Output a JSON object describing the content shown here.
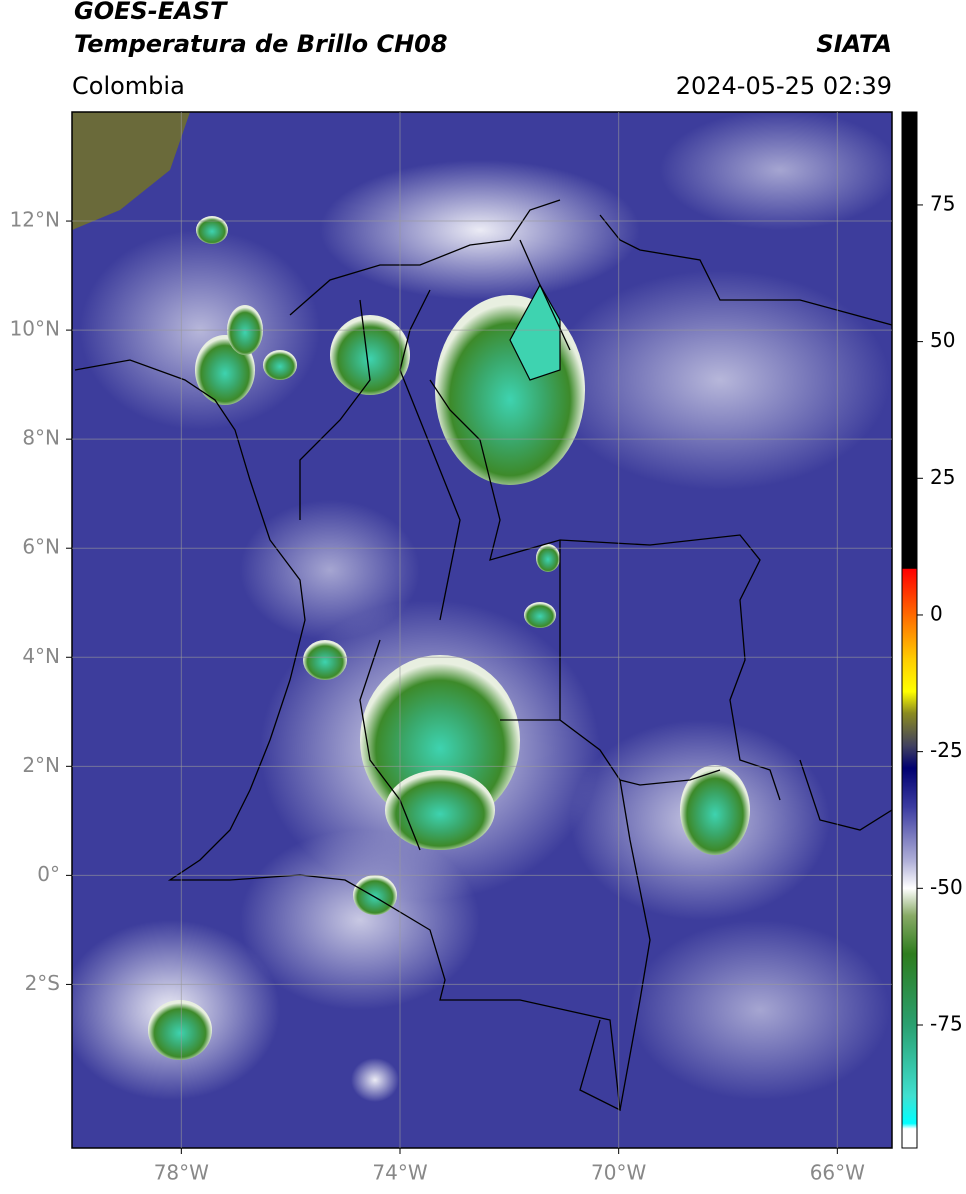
{
  "chart_data": {
    "type": "map",
    "title": "GOES-EAST",
    "subtitle": "Temperatura de Brillo CH08",
    "source": "SIATA",
    "region": "Colombia",
    "timestamp": "2024-05-25 02:39",
    "xlim": [
      -80,
      -65
    ],
    "ylim": [
      -5,
      14
    ],
    "xticks": [
      {
        "value": -78,
        "label": "78°W"
      },
      {
        "value": -74,
        "label": "74°W"
      },
      {
        "value": -70,
        "label": "70°W"
      },
      {
        "value": -66,
        "label": "66°W"
      }
    ],
    "yticks": [
      {
        "value": 12,
        "label": "12°N"
      },
      {
        "value": 10,
        "label": "10°N"
      },
      {
        "value": 8,
        "label": "8°N"
      },
      {
        "value": 6,
        "label": "6°N"
      },
      {
        "value": 4,
        "label": "4°N"
      },
      {
        "value": 2,
        "label": "2°N"
      },
      {
        "value": 0,
        "label": "0°"
      },
      {
        "value": -2,
        "label": "2°S"
      }
    ],
    "grid": true,
    "colorbar": {
      "clim": [
        -97.5,
        92
      ],
      "ticks": [
        75,
        50,
        25,
        0,
        -25,
        -50,
        -75
      ],
      "colormap": [
        {
          "value": 92,
          "color": "#000000"
        },
        {
          "value": 8.5,
          "color": "#000000"
        },
        {
          "value": 8.4,
          "color": "#ff0000"
        },
        {
          "value": 0,
          "color": "#ff6a00"
        },
        {
          "value": -8,
          "color": "#ffcc00"
        },
        {
          "value": -14,
          "color": "#ffff00"
        },
        {
          "value": -18,
          "color": "#8a8a20"
        },
        {
          "value": -24,
          "color": "#404060"
        },
        {
          "value": -28,
          "color": "#000070"
        },
        {
          "value": -35,
          "color": "#3a3aa0"
        },
        {
          "value": -45,
          "color": "#b0b0d8"
        },
        {
          "value": -50,
          "color": "#ffffff"
        },
        {
          "value": -55,
          "color": "#88aa66"
        },
        {
          "value": -62,
          "color": "#2e7d1e"
        },
        {
          "value": -75,
          "color": "#2aa070"
        },
        {
          "value": -88,
          "color": "#40e0d0"
        },
        {
          "value": -93,
          "color": "#00ffff"
        },
        {
          "value": -94,
          "color": "#ffffff"
        },
        {
          "value": -97.5,
          "color": "#ffffff"
        }
      ]
    }
  }
}
